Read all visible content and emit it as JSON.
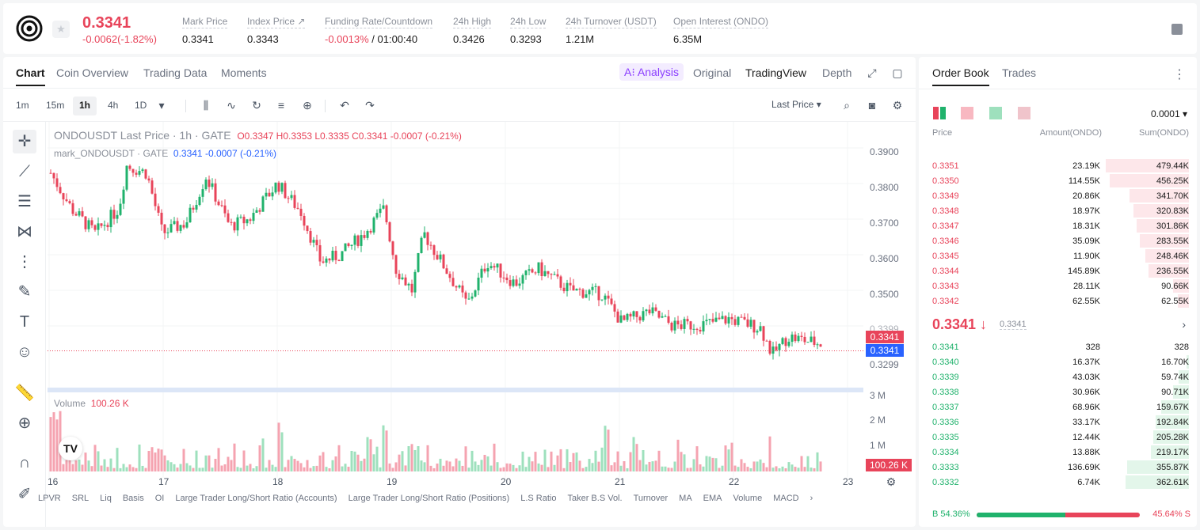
{
  "header": {
    "last_price": "0.3341",
    "change": "-0.0062(-1.82%)",
    "stats": [
      {
        "label": "Mark Price",
        "value": "0.3341"
      },
      {
        "label": "Index Price ↗",
        "value": "0.3343"
      },
      {
        "label": "Funding Rate/Countdown",
        "value_red": "-0.0013%",
        "value": " / 01:00:40"
      },
      {
        "label": "24h High",
        "value": "0.3426"
      },
      {
        "label": "24h Low",
        "value": "0.3293"
      },
      {
        "label": "24h Turnover (USDT)",
        "value": "1.21M"
      },
      {
        "label": "Open Interest (ONDO)",
        "value": "6.35M"
      }
    ]
  },
  "chart_tabs": [
    "Chart",
    "Coin Overview",
    "Trading Data",
    "Moments"
  ],
  "view_tabs": {
    "ai": "A⁝ Analysis",
    "original": "Original",
    "tradingview": "TradingView",
    "depth": "Depth"
  },
  "intervals": [
    "1m",
    "15m",
    "1h",
    "4h",
    "1D"
  ],
  "last_price_select": "Last Price",
  "legend": {
    "title": "ONDOUSDT Last Price · 1h · GATE",
    "ohlc": "O0.3347 H0.3353 L0.3335 C0.3341 -0.0007 (-0.21%)",
    "mark_label": "mark_ONDOUSDT · GATE",
    "mark_vals": "0.3341 -0.0007 (-0.21%)"
  },
  "y_ticks": [
    "0.3900",
    "0.3800",
    "0.3700",
    "0.3600",
    "0.3500",
    "0.3299"
  ],
  "price_tags": {
    "last": "0.3341",
    "mark": "0.3341",
    "hover": "0.3399"
  },
  "x_ticks": [
    "16",
    "17",
    "18",
    "19",
    "20",
    "21",
    "22",
    "23"
  ],
  "volume": {
    "label": "Volume",
    "value": "100.26 K",
    "ticks": [
      "3 M",
      "2 M",
      "1 M"
    ],
    "tag": "100.26 K"
  },
  "indicators": [
    "LPVR",
    "SRL",
    "Liq",
    "Basis",
    "OI",
    "Large Trader Long/Short Ratio (Accounts)",
    "Large Trader Long/Short Ratio (Positions)",
    "L.S Ratio",
    "Taker B.S Vol.",
    "Turnover",
    "MA",
    "EMA",
    "Volume",
    "MACD"
  ],
  "orderbook": {
    "tabs": [
      "Order Book",
      "Trades"
    ],
    "precision": "0.0001",
    "headers": [
      "Price",
      "Amount(ONDO)",
      "Sum(ONDO)"
    ],
    "asks": [
      {
        "p": "0.3351",
        "a": "23.19K",
        "s": "479.44K",
        "d": 1.0
      },
      {
        "p": "0.3350",
        "a": "114.55K",
        "s": "456.25K",
        "d": 0.95
      },
      {
        "p": "0.3349",
        "a": "20.86K",
        "s": "341.70K",
        "d": 0.71
      },
      {
        "p": "0.3348",
        "a": "18.97K",
        "s": "320.83K",
        "d": 0.67
      },
      {
        "p": "0.3347",
        "a": "18.31K",
        "s": "301.86K",
        "d": 0.63
      },
      {
        "p": "0.3346",
        "a": "35.09K",
        "s": "283.55K",
        "d": 0.59
      },
      {
        "p": "0.3345",
        "a": "11.90K",
        "s": "248.46K",
        "d": 0.52
      },
      {
        "p": "0.3344",
        "a": "145.89K",
        "s": "236.55K",
        "d": 0.49
      },
      {
        "p": "0.3343",
        "a": "28.11K",
        "s": "90.66K",
        "d": 0.19
      },
      {
        "p": "0.3342",
        "a": "62.55K",
        "s": "62.55K",
        "d": 0.13
      }
    ],
    "mid_price": "0.3341 ↓",
    "mid_mark": "0.3341",
    "bids": [
      {
        "p": "0.3341",
        "a": "328",
        "s": "328",
        "d": 0.0
      },
      {
        "p": "0.3340",
        "a": "16.37K",
        "s": "16.70K",
        "d": 0.03
      },
      {
        "p": "0.3339",
        "a": "43.03K",
        "s": "59.74K",
        "d": 0.12
      },
      {
        "p": "0.3338",
        "a": "30.96K",
        "s": "90.71K",
        "d": 0.19
      },
      {
        "p": "0.3337",
        "a": "68.96K",
        "s": "159.67K",
        "d": 0.33
      },
      {
        "p": "0.3336",
        "a": "33.17K",
        "s": "192.84K",
        "d": 0.4
      },
      {
        "p": "0.3335",
        "a": "12.44K",
        "s": "205.28K",
        "d": 0.43
      },
      {
        "p": "0.3334",
        "a": "13.88K",
        "s": "219.17K",
        "d": 0.46
      },
      {
        "p": "0.3333",
        "a": "136.69K",
        "s": "355.87K",
        "d": 0.74
      },
      {
        "p": "0.3332",
        "a": "6.74K",
        "s": "362.61K",
        "d": 0.76
      }
    ],
    "buy_ratio": "B 54.36%",
    "sell_ratio": "45.64% S",
    "buy_pct": 54.36
  },
  "colors": {
    "up": "#20b26c",
    "down": "#e8445a"
  }
}
